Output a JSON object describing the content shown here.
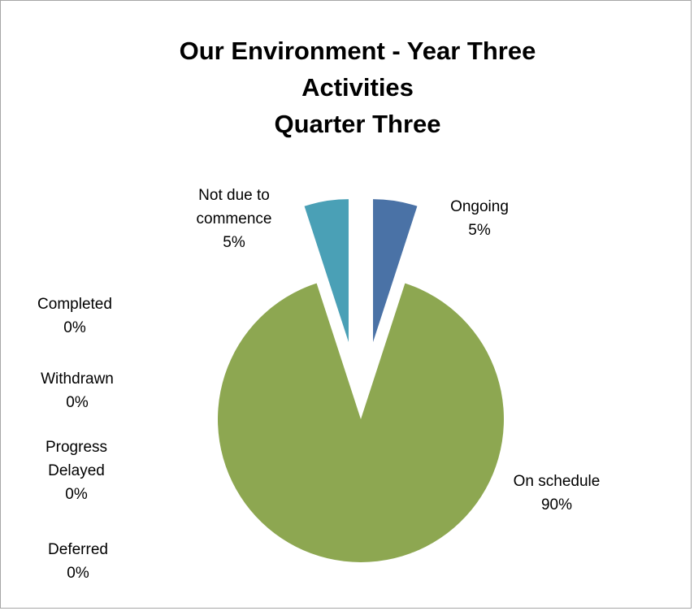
{
  "chart_data": {
    "type": "pie",
    "title": "Our Environment - Year Three\nActivities\nQuarter Three",
    "categories": [
      "Ongoing",
      "On schedule",
      "Deferred",
      "Progress Delayed",
      "Withdrawn",
      "Completed",
      "Not due to commence"
    ],
    "values": [
      5,
      90,
      0,
      0,
      0,
      0,
      5
    ],
    "value_labels": [
      "5%",
      "90%",
      "0%",
      "0%",
      "0%",
      "0%",
      "5%"
    ],
    "colors": [
      "#4a72a6",
      "#8da751",
      "#7a5c9c",
      "#c0504d",
      "#4f81bd",
      "#f79646",
      "#4aa0b6"
    ]
  }
}
